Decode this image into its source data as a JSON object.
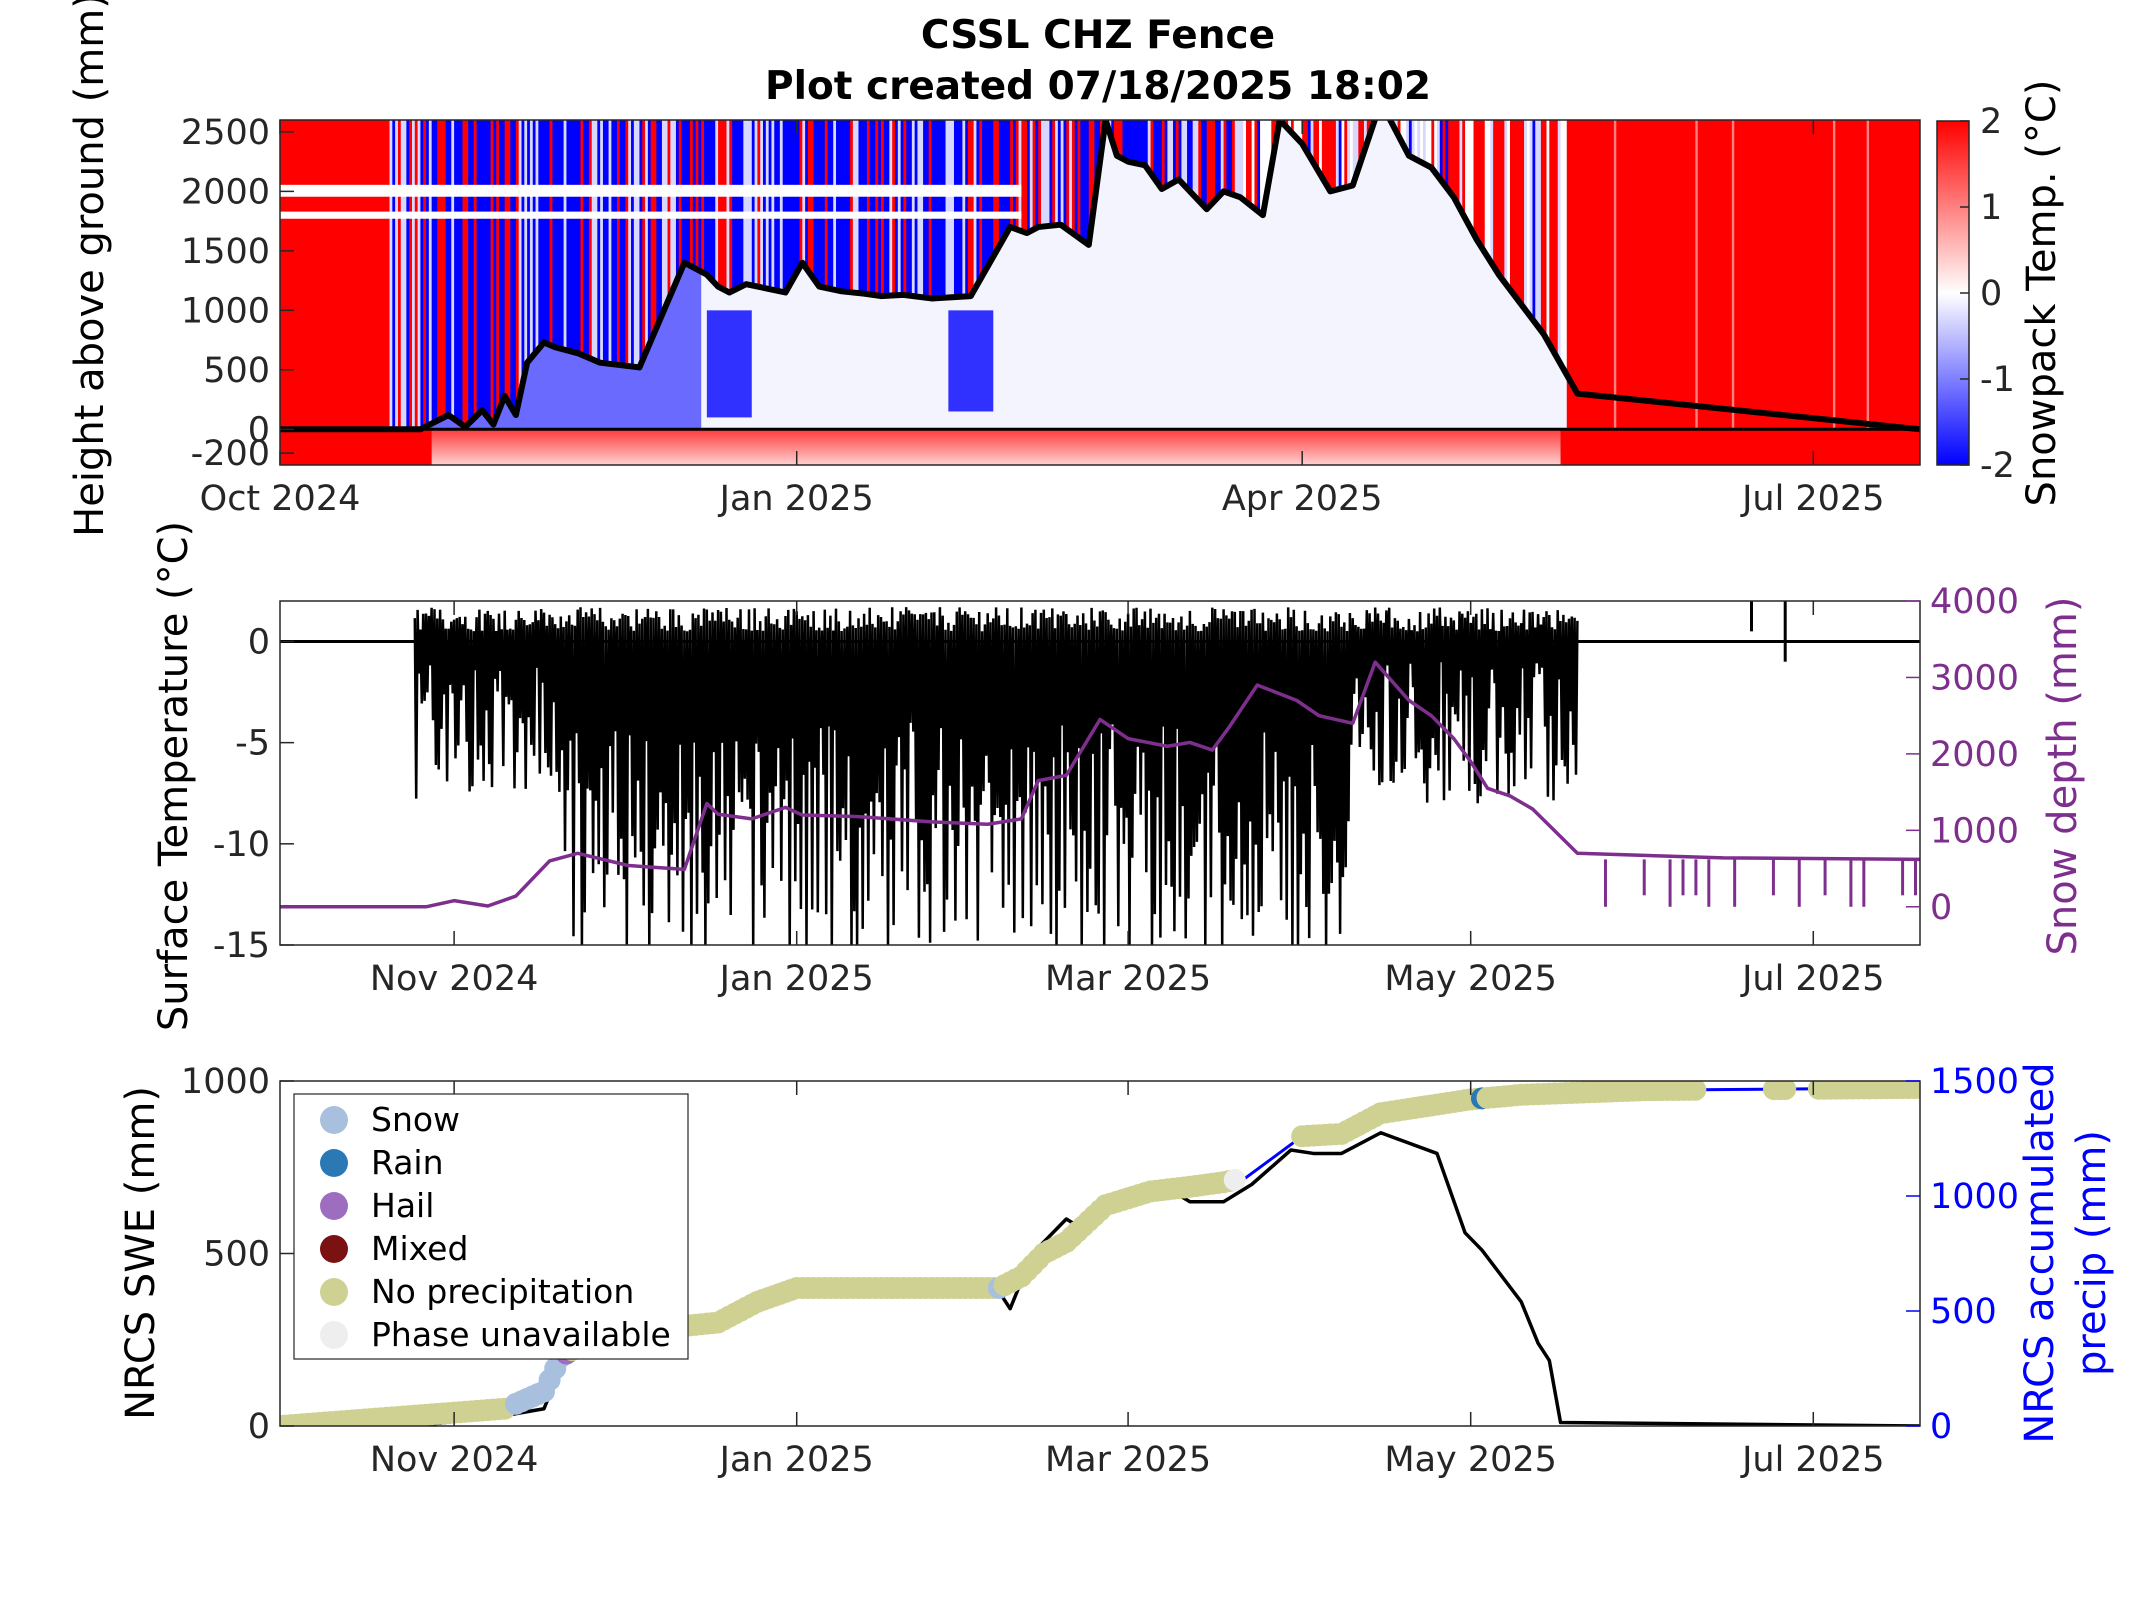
{
  "title": {
    "line1": "CSSL CHZ Fence",
    "line2": "Plot created 07/18/2025 18:02"
  },
  "colors": {
    "warm": "#ff0000",
    "cold": "#0000ff",
    "neutral": "#ffffff",
    "snow_depth": "#7e2f8e",
    "precip": "#0000ff",
    "swe": "#000000"
  },
  "chart_data": [
    {
      "type": "heatmap",
      "panel": "top",
      "ylabel": "Height above ground (mm)",
      "ylim": [
        -300,
        2600
      ],
      "yticks": [
        -200,
        0,
        500,
        1000,
        1500,
        2000,
        2500
      ],
      "ytick_labels": [
        "-200",
        "0",
        "500",
        "1000",
        "1500",
        "2000",
        "2500"
      ],
      "xlim": [
        "2024-10-01",
        "2025-07-20"
      ],
      "xticks": [
        "2024-10-01",
        "2025-01-01",
        "2025-04-01",
        "2025-07-01"
      ],
      "xtick_labels": [
        "Oct 2024",
        "Jan 2025",
        "Apr 2025",
        "Jul 2025"
      ],
      "colorbar": {
        "label": "Snowpack Temp. (°C)",
        "range": [
          -2,
          2
        ],
        "ticks": [
          2,
          1,
          0,
          -1,
          -2
        ],
        "tick_labels": [
          "2",
          "1",
          "0",
          "-1",
          "-2"
        ]
      },
      "snow_depth_line": {
        "x": [
          "2024-10-01",
          "2024-10-26",
          "2024-10-31",
          "2024-11-03",
          "2024-11-06",
          "2024-11-08",
          "2024-11-10",
          "2024-11-12",
          "2024-11-14",
          "2024-11-17",
          "2024-11-19",
          "2024-11-23",
          "2024-11-27",
          "2024-12-04",
          "2024-12-12",
          "2024-12-16",
          "2024-12-18",
          "2024-12-20",
          "2024-12-23",
          "2024-12-27",
          "2024-12-30",
          "2025-01-02",
          "2025-01-05",
          "2025-01-09",
          "2025-01-13",
          "2025-01-16",
          "2025-01-20",
          "2025-01-25",
          "2025-02-01",
          "2025-02-08",
          "2025-02-11",
          "2025-02-13",
          "2025-02-17",
          "2025-02-22",
          "2025-02-25",
          "2025-02-27",
          "2025-03-01",
          "2025-03-04",
          "2025-03-07",
          "2025-03-10",
          "2025-03-15",
          "2025-03-18",
          "2025-03-21",
          "2025-03-25",
          "2025-03-28",
          "2025-04-01",
          "2025-04-06",
          "2025-04-10",
          "2025-04-15",
          "2025-04-20",
          "2025-04-24",
          "2025-04-28",
          "2025-05-02",
          "2025-05-06",
          "2025-05-10",
          "2025-05-14",
          "2025-05-20",
          "2025-07-20"
        ],
        "y": [
          0,
          0,
          120,
          20,
          160,
          40,
          280,
          120,
          560,
          730,
          690,
          640,
          560,
          520,
          1400,
          1300,
          1200,
          1150,
          1220,
          1180,
          1150,
          1400,
          1200,
          1160,
          1140,
          1120,
          1130,
          1100,
          1120,
          1700,
          1650,
          1700,
          1720,
          1550,
          2600,
          2300,
          2250,
          2220,
          2020,
          2100,
          1850,
          2000,
          1950,
          1800,
          2600,
          2400,
          2000,
          2050,
          2750,
          2300,
          2200,
          1950,
          1600,
          1300,
          1050,
          800,
          300,
          0
        ]
      }
    },
    {
      "type": "line",
      "panel": "middle",
      "ylabel": "Surface Temperature (°C)",
      "ylim": [
        -15,
        2
      ],
      "yticks": [
        0,
        -5,
        -10,
        -15
      ],
      "ytick_labels": [
        "0",
        "-5",
        "-10",
        "-15"
      ],
      "y2label": "Snow depth (mm)",
      "y2lim": [
        -500,
        4000
      ],
      "y2ticks": [
        4000,
        3000,
        2000,
        1000,
        0
      ],
      "y2tick_labels": [
        "4000",
        "3000",
        "2000",
        "1000",
        "0"
      ],
      "xlim": [
        "2024-10-01",
        "2025-07-20"
      ],
      "xticks": [
        "2024-11-01",
        "2025-01-01",
        "2025-03-01",
        "2025-05-01",
        "2025-07-01"
      ],
      "xtick_labels": [
        "Nov 2024",
        "Jan 2025",
        "Mar 2025",
        "May 2025",
        "Jul 2025"
      ],
      "snow_depth": {
        "x": [
          "2024-10-01",
          "2024-10-27",
          "2024-11-01",
          "2024-11-07",
          "2024-11-12",
          "2024-11-18",
          "2024-11-23",
          "2024-12-02",
          "2024-12-12",
          "2024-12-16",
          "2024-12-18",
          "2024-12-24",
          "2024-12-30",
          "2025-01-02",
          "2025-01-12",
          "2025-01-25",
          "2025-02-04",
          "2025-02-10",
          "2025-02-13",
          "2025-02-18",
          "2025-02-24",
          "2025-02-27",
          "2025-03-01",
          "2025-03-08",
          "2025-03-12",
          "2025-03-16",
          "2025-03-19",
          "2025-03-24",
          "2025-03-31",
          "2025-04-04",
          "2025-04-10",
          "2025-04-14",
          "2025-04-20",
          "2025-04-24",
          "2025-04-28",
          "2025-05-01",
          "2025-05-04",
          "2025-05-08",
          "2025-05-12",
          "2025-05-20",
          "2025-06-15",
          "2025-07-20"
        ],
        "y": [
          0,
          0,
          80,
          10,
          140,
          600,
          700,
          540,
          490,
          1350,
          1210,
          1150,
          1300,
          1200,
          1180,
          1110,
          1080,
          1150,
          1650,
          1720,
          2450,
          2300,
          2200,
          2100,
          2150,
          2050,
          2350,
          2900,
          2700,
          2500,
          2400,
          3200,
          2700,
          2500,
          2200,
          1900,
          1550,
          1450,
          1280,
          700,
          640,
          620
        ]
      },
      "notes": "surface temperature mostly oscillates between about 1 and -15 °C through Nov–May"
    },
    {
      "type": "scatter",
      "panel": "bottom",
      "ylabel": "NRCS SWE (mm)",
      "ylim": [
        0,
        1000
      ],
      "yticks": [
        0,
        500,
        1000
      ],
      "ytick_labels": [
        "0",
        "500",
        "1000"
      ],
      "y2label": "NRCS accumulated precip (mm)",
      "y2label_lines": [
        "NRCS accumulated",
        "precip (mm)"
      ],
      "y2lim": [
        0,
        1500
      ],
      "y2ticks": [
        0,
        500,
        1000,
        1500
      ],
      "y2tick_labels": [
        "0",
        "500",
        "1000",
        "1500"
      ],
      "xlim": [
        "2024-10-01",
        "2025-07-20"
      ],
      "xticks": [
        "2024-11-01",
        "2025-01-01",
        "2025-03-01",
        "2025-05-01",
        "2025-07-01"
      ],
      "xtick_labels": [
        "Nov 2024",
        "Jan 2025",
        "Mar 2025",
        "May 2025",
        "Jul 2025"
      ],
      "legend": {
        "placement": "top-left",
        "entries": [
          {
            "name": "Snow",
            "color": "#a8bfde"
          },
          {
            "name": "Rain",
            "color": "#2a78b4"
          },
          {
            "name": "Hail",
            "color": "#9d6ec0"
          },
          {
            "name": "Mixed",
            "color": "#7b1212"
          },
          {
            "name": "No precipitation",
            "color": "#cfd193"
          },
          {
            "name": "Phase unavailable",
            "color": "#eeeeee"
          }
        ]
      },
      "swe": {
        "x": [
          "2024-10-01",
          "2024-10-25",
          "2024-11-10",
          "2024-11-17",
          "2024-11-20",
          "2024-11-26",
          "2024-12-05",
          "2024-12-10",
          "2024-12-18",
          "2024-12-25",
          "2025-01-01",
          "2025-01-10",
          "2025-01-20",
          "2025-02-01",
          "2025-02-06",
          "2025-02-08",
          "2025-02-12",
          "2025-02-18",
          "2025-02-20",
          "2025-02-25",
          "2025-03-01",
          "2025-03-10",
          "2025-03-12",
          "2025-03-18",
          "2025-03-23",
          "2025-03-30",
          "2025-04-03",
          "2025-04-08",
          "2025-04-15",
          "2025-04-25",
          "2025-04-30",
          "2025-05-03",
          "2025-05-10",
          "2025-05-13",
          "2025-05-15",
          "2025-05-17",
          "2025-07-20"
        ],
        "y": [
          0,
          0,
          30,
          50,
          170,
          250,
          270,
          285,
          300,
          360,
          400,
          400,
          400,
          400,
          390,
          340,
          500,
          600,
          580,
          660,
          680,
          670,
          650,
          650,
          700,
          800,
          790,
          790,
          850,
          790,
          560,
          510,
          360,
          240,
          190,
          10,
          0
        ]
      },
      "precip_line": {
        "x": [
          "2024-10-01",
          "2024-10-25",
          "2024-11-10",
          "2024-11-17",
          "2024-11-20",
          "2024-11-26",
          "2024-12-05",
          "2024-12-10",
          "2024-12-18",
          "2024-12-25",
          "2025-01-01",
          "2025-01-20",
          "2025-02-06",
          "2025-02-10",
          "2025-02-14",
          "2025-02-18",
          "2025-02-25",
          "2025-03-05",
          "2025-03-12",
          "2025-03-18",
          "2025-03-22",
          "2025-04-01",
          "2025-04-08",
          "2025-04-15",
          "2025-05-01",
          "2025-05-10",
          "2025-06-01",
          "2025-07-20"
        ],
        "y": [
          0,
          45,
          75,
          150,
          300,
          390,
          400,
          430,
          450,
          540,
          600,
          600,
          600,
          650,
          750,
          800,
          960,
          1020,
          1040,
          1060,
          1080,
          1260,
          1270,
          1360,
          1420,
          1440,
          1460,
          1470
        ]
      },
      "phase_points": [
        {
          "phase": "No precipitation",
          "x_start": "2024-10-01",
          "x_end": "2024-11-10"
        },
        {
          "phase": "Snow",
          "x_start": "2024-11-12",
          "x_end": "2024-11-20"
        },
        {
          "phase": "Hail",
          "x_start": "2024-11-21",
          "x_end": "2024-11-21"
        },
        {
          "phase": "No precipitation",
          "x_start": "2024-11-22",
          "x_end": "2025-02-05"
        },
        {
          "phase": "Snow",
          "x_start": "2025-02-06",
          "x_end": "2025-02-06"
        },
        {
          "phase": "No precipitation",
          "x_start": "2025-02-07",
          "x_end": "2025-03-19"
        },
        {
          "phase": "Phase unavailable",
          "x_start": "2025-03-20",
          "x_end": "2025-03-20"
        },
        {
          "phase": "No precipitation",
          "x_start": "2025-04-01",
          "x_end": "2025-05-02"
        },
        {
          "phase": "Rain",
          "x_start": "2025-05-03",
          "x_end": "2025-05-03"
        },
        {
          "phase": "No precipitation",
          "x_start": "2025-05-04",
          "x_end": "2025-06-10"
        },
        {
          "phase": "No precipitation",
          "x_start": "2025-06-24",
          "x_end": "2025-06-26"
        },
        {
          "phase": "No precipitation",
          "x_start": "2025-07-02",
          "x_end": "2025-07-20"
        }
      ]
    }
  ]
}
